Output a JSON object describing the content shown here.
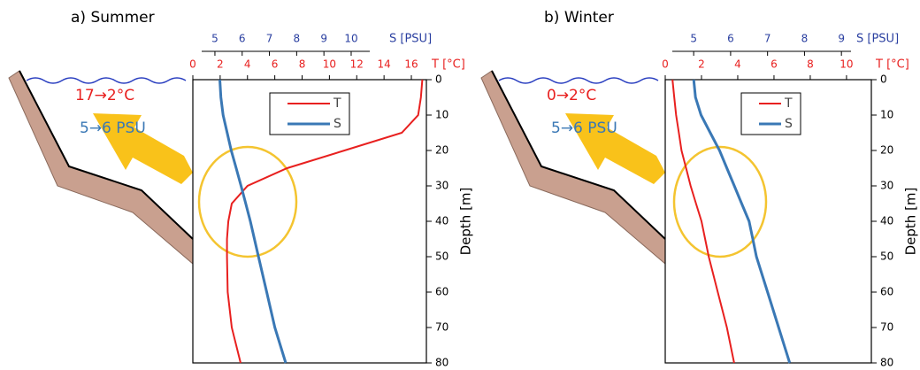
{
  "chart_data": [
    {
      "type": "line",
      "title": "a) Summer",
      "annotations": [
        "17→2°C",
        "5→6 PSU"
      ],
      "y": [
        0,
        5,
        10,
        15,
        20,
        25,
        30,
        35,
        40,
        45,
        50,
        60,
        70,
        80
      ],
      "ylabel": "Depth [m]",
      "ylim": [
        0,
        80
      ],
      "yticks": [
        0,
        10,
        20,
        30,
        40,
        50,
        60,
        70,
        80
      ],
      "xlabel": "T [°C]",
      "xlim": [
        0,
        17.1
      ],
      "xticks": [
        0,
        2,
        4,
        6,
        8,
        10,
        12,
        14,
        16
      ],
      "x2label": "S [PSU]",
      "x2lim": [
        4.19,
        12.76
      ],
      "x2ticks": [
        5,
        6,
        7,
        8,
        9,
        10
      ],
      "series": [
        {
          "name": "T",
          "color": "#e8201f",
          "values": [
            16.8,
            16.7,
            16.5,
            15.3,
            11.1,
            6.9,
            4.0,
            2.85,
            2.6,
            2.5,
            2.5,
            2.55,
            2.85,
            3.5
          ]
        },
        {
          "name": "S",
          "color": "#3a78b5",
          "axis": "x2",
          "values": [
            5.18,
            5.22,
            5.3,
            5.45,
            5.6,
            5.78,
            5.96,
            6.13,
            6.3,
            6.45,
            6.6,
            6.9,
            7.2,
            7.6
          ]
        }
      ]
    },
    {
      "type": "line",
      "title": "b) Winter",
      "annotations": [
        "0→2°C",
        "5→6 PSU"
      ],
      "y": [
        0,
        5,
        10,
        15,
        20,
        25,
        30,
        35,
        40,
        45,
        50,
        60,
        70,
        80
      ],
      "ylabel": "Depth [m]",
      "ylim": [
        0,
        80
      ],
      "yticks": [
        0,
        10,
        20,
        30,
        40,
        50,
        60,
        70,
        80
      ],
      "xlabel": "T [°C]",
      "xlim": [
        0,
        11.37
      ],
      "xticks": [
        0,
        2,
        4,
        6,
        8,
        10
      ],
      "x2label": "S [PSU]",
      "x2lim": [
        4.23,
        9.81
      ],
      "x2ticks": [
        5,
        6,
        7,
        8,
        9
      ],
      "series": [
        {
          "name": "T",
          "color": "#e8201f",
          "values": [
            0.4,
            0.5,
            0.6,
            0.75,
            0.9,
            1.15,
            1.4,
            1.7,
            2.0,
            2.2,
            2.4,
            2.9,
            3.4,
            3.8
          ]
        },
        {
          "name": "S",
          "color": "#3a78b5",
          "axis": "x2",
          "values": [
            5.0,
            5.05,
            5.2,
            5.45,
            5.7,
            5.9,
            6.1,
            6.3,
            6.5,
            6.6,
            6.7,
            7.0,
            7.3,
            7.6
          ]
        }
      ]
    }
  ]
}
